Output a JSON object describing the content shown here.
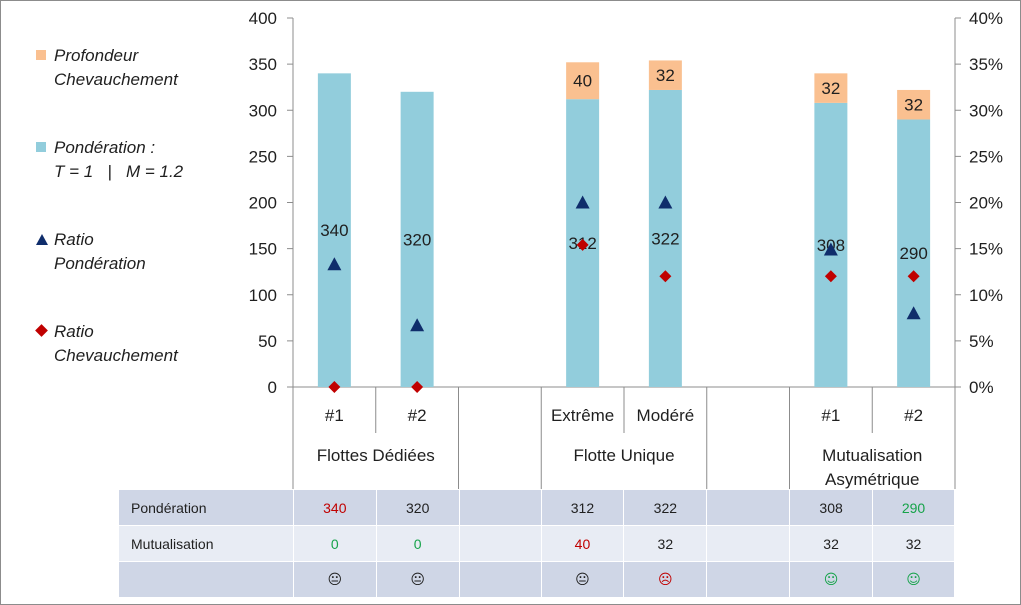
{
  "chart_data": {
    "type": "bar",
    "stacked": true,
    "categories": [
      "#1",
      "#2",
      "Extrême",
      "Modéré",
      "#1",
      "#2"
    ],
    "groups": [
      {
        "label": "Flottes Dédiées",
        "categories": [
          "#1",
          "#2"
        ]
      },
      {
        "label": "Flotte Unique",
        "categories": [
          "Extrême",
          "Modéré"
        ]
      },
      {
        "label": "Mutualisation\nAsymétrique",
        "categories": [
          "#1",
          "#2"
        ]
      }
    ],
    "series": [
      {
        "name": "Pondération :\nT = 1   |   M = 1.2",
        "type": "bar",
        "axis": "left",
        "color": "#92cddc",
        "values": [
          340,
          320,
          312,
          322,
          308,
          290
        ],
        "labels": [
          "340",
          "320",
          "312",
          "322",
          "308",
          "290"
        ]
      },
      {
        "name": "Profondeur\nChevauchement",
        "type": "bar",
        "axis": "left",
        "color": "#fac090",
        "values": [
          0,
          0,
          40,
          32,
          32,
          32
        ],
        "labels": [
          "",
          "",
          "40",
          "32",
          "32",
          "32"
        ]
      },
      {
        "name": "Ratio\nPondération",
        "type": "marker",
        "marker": "triangle",
        "axis": "right",
        "color": "#0f2d6b",
        "values": [
          13.3,
          6.7,
          20,
          20,
          14.9,
          8
        ]
      },
      {
        "name": "Ratio\nChevauchement",
        "type": "marker",
        "marker": "diamond",
        "axis": "right",
        "color": "#c00000",
        "values": [
          0,
          0,
          15.4,
          12,
          12,
          12
        ]
      }
    ],
    "y_left": {
      "min": 0,
      "max": 400,
      "step": 50,
      "ticks": [
        "0",
        "50",
        "100",
        "150",
        "200",
        "250",
        "300",
        "350",
        "400"
      ]
    },
    "y_right": {
      "min": 0,
      "max": 40,
      "step": 5,
      "ticks": [
        "0%",
        "5%",
        "10%",
        "15%",
        "20%",
        "25%",
        "30%",
        "35%",
        "40%"
      ]
    },
    "grid": false,
    "legend_position": "left",
    "title": "",
    "xlabel": "",
    "ylabel": ""
  },
  "legend": [
    {
      "label": "Profondeur\nChevauchement",
      "marker": "square",
      "color": "#fac090"
    },
    {
      "label": "Pondération :\nT = 1   |   M = 1.2",
      "marker": "square",
      "color": "#92cddc"
    },
    {
      "label": "Ratio\nPondération",
      "marker": "triangle",
      "color": "#0f2d6b"
    },
    {
      "label": "Ratio\nChevauchement",
      "marker": "diamond",
      "color": "#c00000"
    }
  ],
  "table": {
    "rows": [
      {
        "label": "Pondération",
        "cells": [
          {
            "text": "340",
            "tone": "red"
          },
          {
            "text": "320",
            "tone": ""
          },
          {
            "text": "",
            "tone": ""
          },
          {
            "text": "312",
            "tone": ""
          },
          {
            "text": "322",
            "tone": ""
          },
          {
            "text": "",
            "tone": ""
          },
          {
            "text": "308",
            "tone": ""
          },
          {
            "text": "290",
            "tone": "green"
          }
        ]
      },
      {
        "label": "Mutualisation",
        "cells": [
          {
            "text": "0",
            "tone": "green"
          },
          {
            "text": "0",
            "tone": "green"
          },
          {
            "text": "",
            "tone": ""
          },
          {
            "text": "40",
            "tone": "red"
          },
          {
            "text": "32",
            "tone": ""
          },
          {
            "text": "",
            "tone": ""
          },
          {
            "text": "32",
            "tone": ""
          },
          {
            "text": "32",
            "tone": ""
          }
        ]
      },
      {
        "label": "",
        "cells": [
          {
            "text": "😐",
            "tone": ""
          },
          {
            "text": "😐",
            "tone": ""
          },
          {
            "text": "",
            "tone": ""
          },
          {
            "text": "😐",
            "tone": ""
          },
          {
            "text": "☹",
            "tone": "sad"
          },
          {
            "text": "",
            "tone": ""
          },
          {
            "text": "☺",
            "tone": "happy"
          },
          {
            "text": "☺",
            "tone": "happy"
          }
        ]
      }
    ]
  }
}
